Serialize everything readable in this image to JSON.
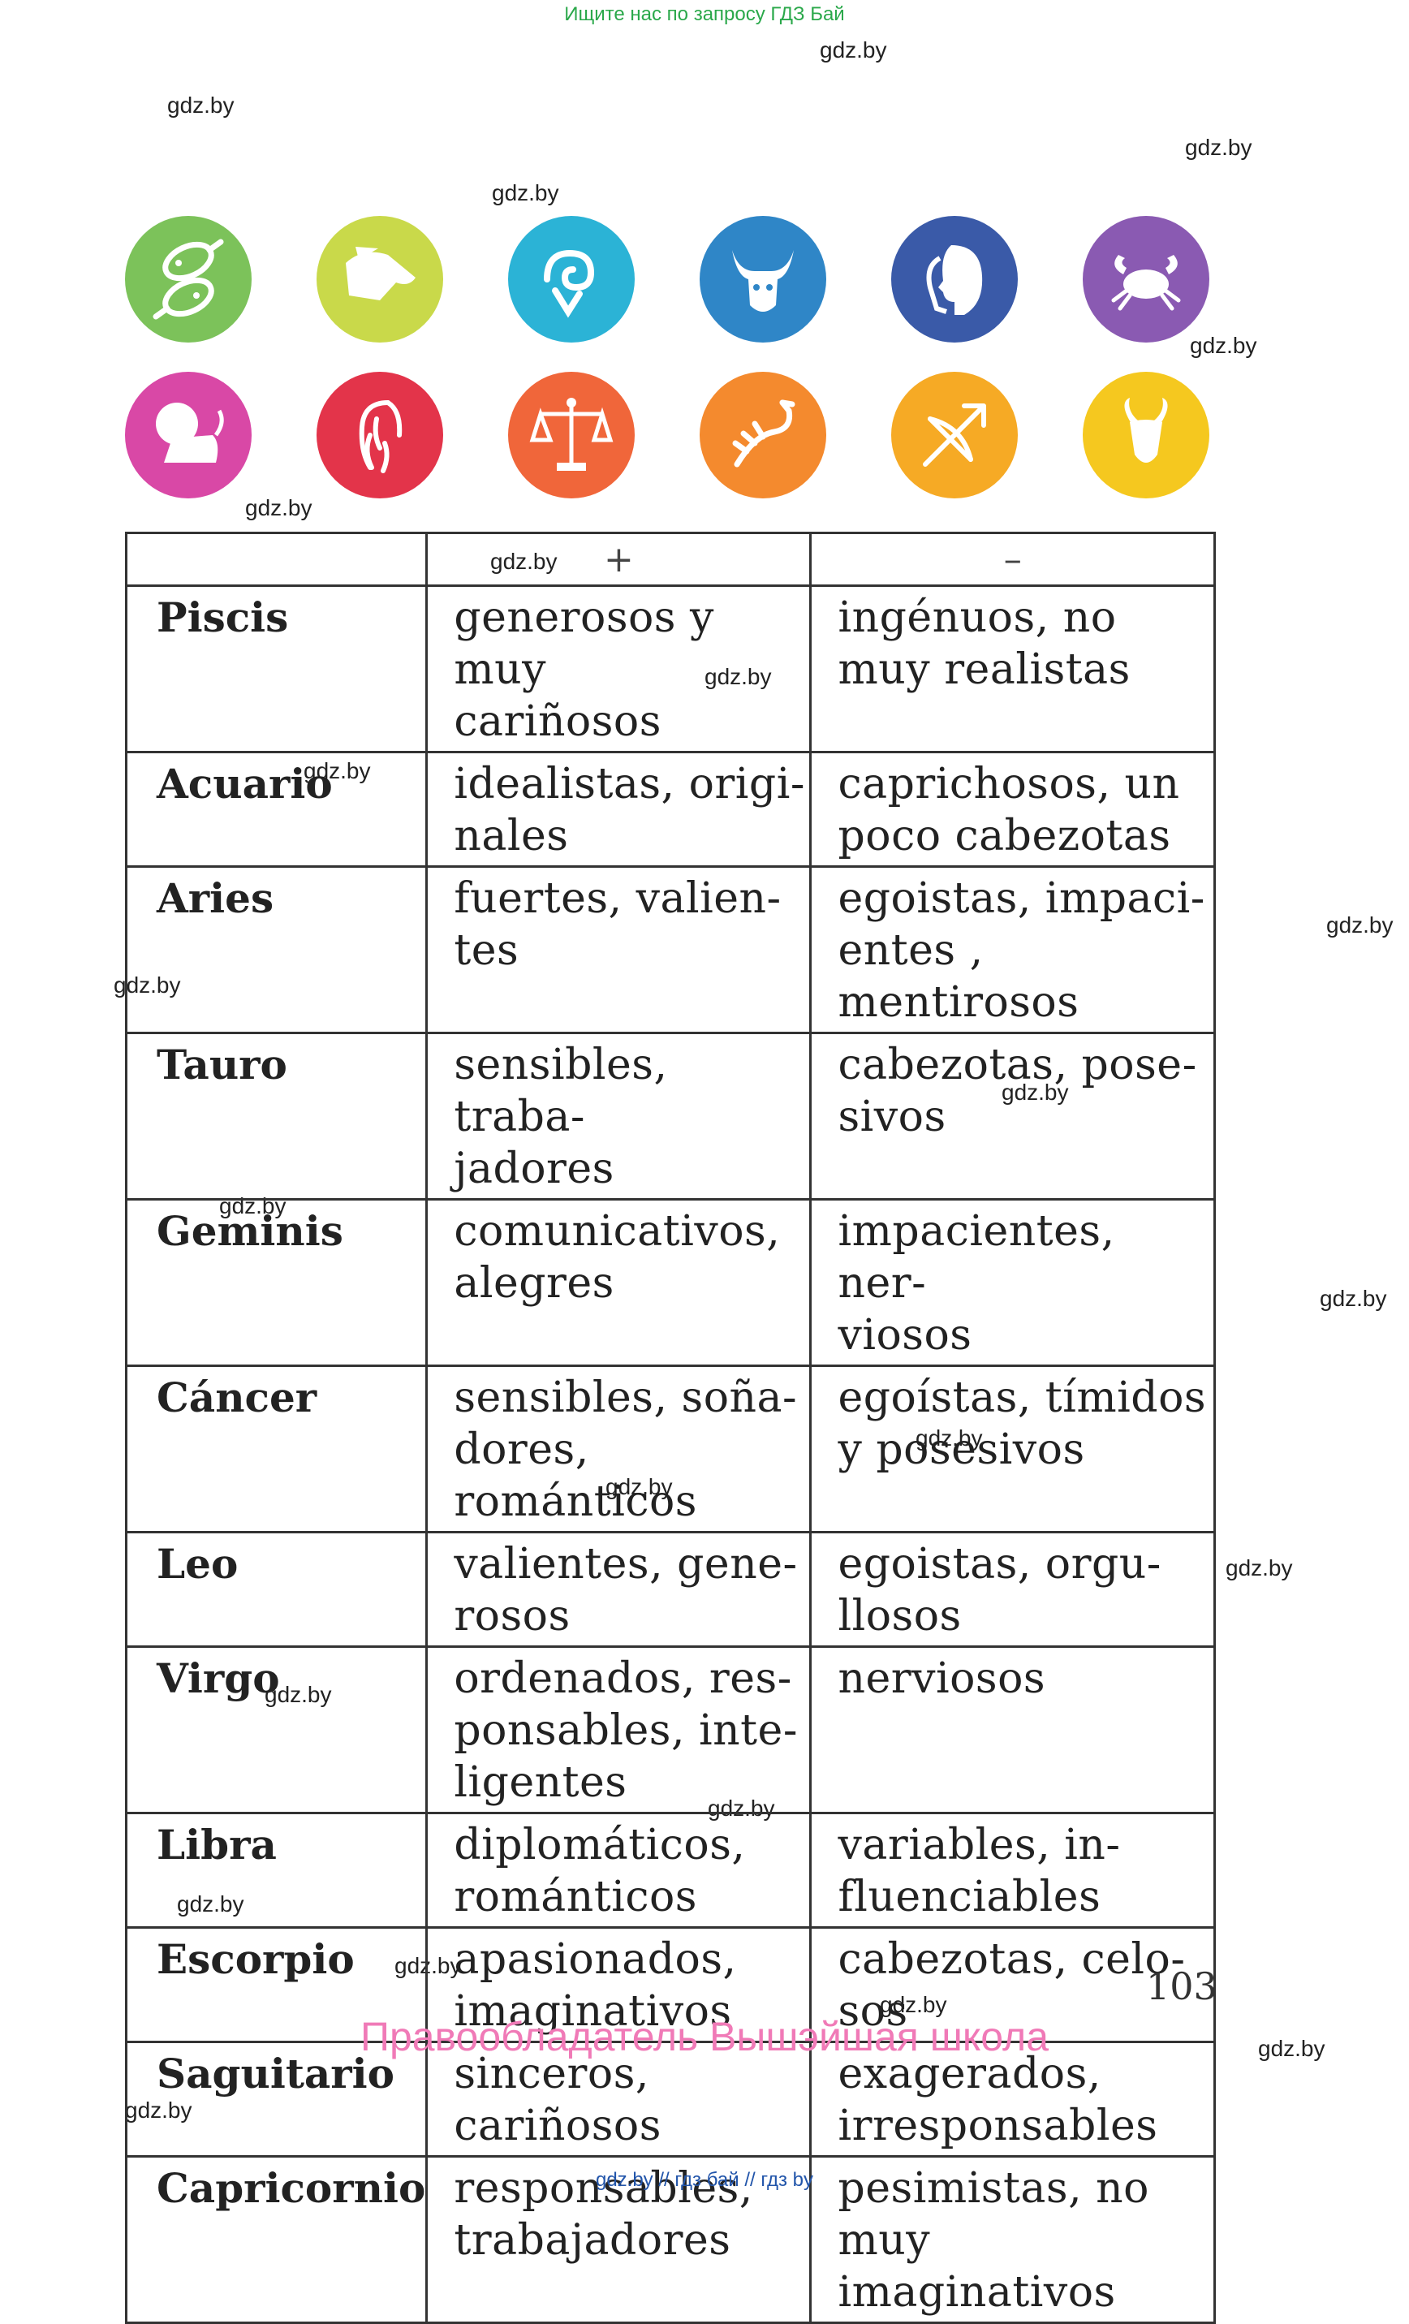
{
  "top_banner": "Ищите нас по запросу ГДЗ Бай",
  "watermark": "gdz.by",
  "signs_icons": [
    {
      "name": "pisces-icon",
      "color": "#7cc25a"
    },
    {
      "name": "aquarius-icon",
      "color": "#c9d94a"
    },
    {
      "name": "aries-icon",
      "color": "#2bb3d6"
    },
    {
      "name": "taurus-icon",
      "color": "#2f86c7"
    },
    {
      "name": "gemini-icon",
      "color": "#3a5aa8"
    },
    {
      "name": "cancer-icon",
      "color": "#8a5ab2"
    },
    {
      "name": "leo-icon",
      "color": "#d948a6"
    },
    {
      "name": "virgo-icon",
      "color": "#e3344a"
    },
    {
      "name": "libra-icon",
      "color": "#f0663a"
    },
    {
      "name": "scorpio-icon",
      "color": "#f48a2e"
    },
    {
      "name": "sagittarius-icon",
      "color": "#f6aa25"
    },
    {
      "name": "capricorn-icon",
      "color": "#f5c81f"
    }
  ],
  "table": {
    "header_plus": "+",
    "header_minus": "–",
    "rows": [
      {
        "sign": "Piscis",
        "pos": [
          "generosos y muy",
          "cariñosos"
        ],
        "neg": [
          "ingénuos, no",
          "muy realistas"
        ]
      },
      {
        "sign": "Acuario",
        "pos": [
          "idealistas, origi-",
          "nales"
        ],
        "neg": [
          "caprichosos, un",
          "poco cabezotas"
        ]
      },
      {
        "sign": "Aries",
        "pos": [
          "fuertes, valien-",
          "tes"
        ],
        "neg": [
          "egoistas, impaci-",
          "entes , mentirosos"
        ]
      },
      {
        "sign": "Tauro",
        "pos": [
          "sensibles, traba-",
          "jadores"
        ],
        "neg": [
          "cabezotas, pose-",
          "sivos"
        ]
      },
      {
        "sign": "Geminis",
        "pos": [
          "comunicativos,",
          "alegres"
        ],
        "neg": [
          "impacientes, ner-",
          "viosos"
        ]
      },
      {
        "sign": "Cáncer",
        "pos": [
          "sensibles, soña-",
          "dores, románticos"
        ],
        "neg": [
          "egoístas, tímidos",
          "y posesivos"
        ]
      },
      {
        "sign": "Leo",
        "pos": [
          "valientes, gene-",
          "rosos"
        ],
        "neg": [
          "egoistas, orgu-",
          "llosos"
        ]
      },
      {
        "sign": "Virgo",
        "pos": [
          "ordenados, res-",
          "ponsables, inte-",
          "ligentes"
        ],
        "neg": [
          "nerviosos"
        ]
      },
      {
        "sign": "Libra",
        "pos": [
          "diplomáticos,",
          "románticos"
        ],
        "neg": [
          "variables, in-",
          "fluenciables"
        ]
      },
      {
        "sign": "Escorpio",
        "pos": [
          "apasionados,",
          "imaginativos"
        ],
        "neg": [
          "cabezotas, celo-",
          "sos"
        ]
      },
      {
        "sign": "Saguitario",
        "pos": [
          "sinceros,",
          "cariñosos"
        ],
        "neg": [
          "exagerados,",
          "irresponsables"
        ]
      },
      {
        "sign": "Capricornio",
        "pos": [
          "responsables,",
          "trabajadores"
        ],
        "neg": [
          "pesimistas, no",
          "muy imaginativos"
        ]
      }
    ]
  },
  "page_number": "103",
  "rights_holder": "Правообладатель Вышэйшая школа",
  "footer_links": "gdz.by  //  гдз бай  //  гдз by"
}
